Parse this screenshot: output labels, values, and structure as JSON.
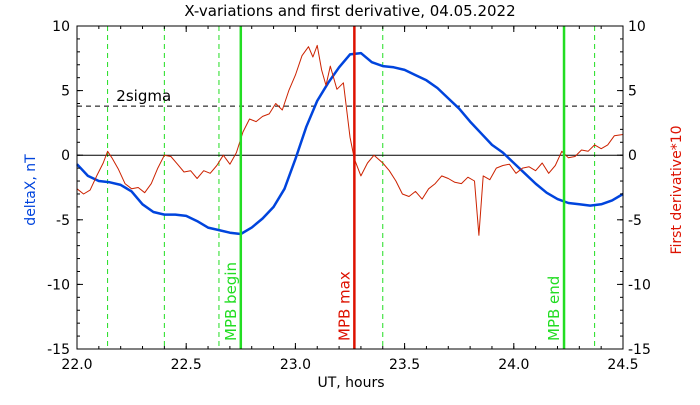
{
  "chart_data": {
    "type": "line",
    "title": "X-variations and first derivative, 04.05.2022",
    "xlabel": "UT, hours",
    "ylabel_left": "deltaX, nT",
    "ylabel_right": "First derivative*10",
    "xlim": [
      22.0,
      24.5
    ],
    "ylim_left": [
      -15,
      10
    ],
    "ylim_right": [
      -15,
      10
    ],
    "x_ticks": [
      "22.0",
      "22.5",
      "23.0",
      "23.5",
      "24.0",
      "24.5"
    ],
    "y_ticks_left": [
      "10",
      "5",
      "0",
      "-5",
      "-10",
      "-15"
    ],
    "y_ticks_right": [
      "10",
      "5",
      "0",
      "-5",
      "-10",
      "-15"
    ],
    "colors": {
      "deltaX": "#0044dd",
      "derivative": "#cc2200",
      "mpb_lines": "#22dd22",
      "max_line": "#dd1100",
      "sigma_line": "#000000",
      "zero_line": "#000000"
    },
    "sigma": {
      "label": "2sigma",
      "value": 3.8
    },
    "markers": [
      {
        "x": 22.75,
        "label": "MPB begin",
        "style": "solid",
        "color": "#22dd22"
      },
      {
        "x": 23.27,
        "label": "MPB max",
        "style": "solid",
        "color": "#dd1100"
      },
      {
        "x": 24.23,
        "label": "MPB end",
        "style": "solid",
        "color": "#22dd22"
      }
    ],
    "dashed_verticals": [
      22.14,
      22.4,
      22.65,
      23.4,
      24.37
    ],
    "series": [
      {
        "name": "deltaX",
        "axis": "left",
        "x": [
          22.0,
          22.05,
          22.1,
          22.15,
          22.2,
          22.25,
          22.3,
          22.35,
          22.4,
          22.45,
          22.5,
          22.55,
          22.6,
          22.65,
          22.7,
          22.75,
          22.8,
          22.85,
          22.9,
          22.95,
          23.0,
          23.05,
          23.1,
          23.15,
          23.2,
          23.25,
          23.3,
          23.35,
          23.4,
          23.45,
          23.5,
          23.55,
          23.6,
          23.65,
          23.7,
          23.75,
          23.8,
          23.85,
          23.9,
          23.95,
          24.0,
          24.05,
          24.1,
          24.15,
          24.2,
          24.25,
          24.3,
          24.35,
          24.4,
          24.45,
          24.5
        ],
        "y": [
          -0.7,
          -1.6,
          -2.0,
          -2.1,
          -2.3,
          -2.8,
          -3.8,
          -4.4,
          -4.6,
          -4.6,
          -4.7,
          -5.1,
          -5.6,
          -5.8,
          -6.0,
          -6.1,
          -5.6,
          -4.9,
          -4.0,
          -2.6,
          -0.3,
          2.2,
          4.2,
          5.6,
          6.8,
          7.8,
          7.9,
          7.2,
          6.9,
          6.8,
          6.6,
          6.2,
          5.8,
          5.2,
          4.4,
          3.6,
          2.6,
          1.7,
          0.8,
          0.2,
          -0.6,
          -1.4,
          -2.2,
          -2.9,
          -3.4,
          -3.7,
          -3.8,
          -3.9,
          -3.8,
          -3.5,
          -3.0
        ]
      },
      {
        "name": "First derivative*10",
        "axis": "right",
        "x": [
          22.0,
          22.03,
          22.06,
          22.09,
          22.12,
          22.14,
          22.16,
          22.19,
          22.22,
          22.25,
          22.28,
          22.31,
          22.34,
          22.37,
          22.4,
          22.43,
          22.46,
          22.49,
          22.52,
          22.55,
          22.58,
          22.61,
          22.64,
          22.67,
          22.7,
          22.73,
          22.76,
          22.79,
          22.82,
          22.85,
          22.88,
          22.91,
          22.94,
          22.97,
          23.0,
          23.03,
          23.06,
          23.08,
          23.1,
          23.12,
          23.14,
          23.16,
          23.19,
          23.22,
          23.25,
          23.27,
          23.3,
          23.33,
          23.36,
          23.4,
          23.43,
          23.46,
          23.49,
          23.52,
          23.55,
          23.58,
          23.61,
          23.64,
          23.67,
          23.7,
          23.73,
          23.76,
          23.79,
          23.82,
          23.84,
          23.86,
          23.89,
          23.92,
          23.95,
          23.98,
          24.01,
          24.04,
          24.07,
          24.1,
          24.13,
          24.16,
          24.19,
          24.22,
          24.25,
          24.28,
          24.31,
          24.34,
          24.37,
          24.4,
          24.43,
          24.46,
          24.5
        ],
        "y": [
          -2.6,
          -3.0,
          -2.7,
          -1.6,
          -0.6,
          0.3,
          -0.2,
          -1.1,
          -2.2,
          -2.6,
          -2.5,
          -2.9,
          -2.2,
          -1.0,
          0.0,
          -0.1,
          -0.7,
          -1.3,
          -1.2,
          -1.8,
          -1.2,
          -1.4,
          -0.8,
          0.0,
          -0.7,
          0.2,
          1.8,
          2.8,
          2.6,
          3.0,
          3.2,
          4.0,
          3.5,
          5.0,
          6.2,
          7.7,
          8.4,
          7.6,
          8.5,
          6.6,
          5.4,
          6.9,
          5.1,
          5.6,
          1.4,
          -0.3,
          -1.6,
          -0.6,
          0.0,
          -0.6,
          -1.2,
          -2.0,
          -3.0,
          -3.2,
          -2.8,
          -3.4,
          -2.6,
          -2.2,
          -1.6,
          -1.8,
          -2.1,
          -2.2,
          -1.7,
          -2.0,
          -6.2,
          -1.6,
          -1.9,
          -1.0,
          -0.8,
          -0.7,
          -1.4,
          -1.0,
          -0.9,
          -1.2,
          -0.6,
          -1.4,
          -0.8,
          0.3,
          -0.2,
          -0.1,
          0.4,
          0.3,
          0.8,
          0.5,
          0.8,
          1.5,
          1.6
        ]
      }
    ]
  }
}
